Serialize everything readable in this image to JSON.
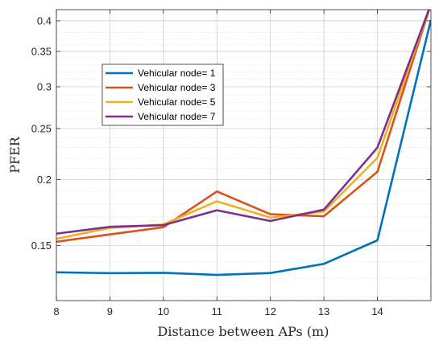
{
  "chart_data": {
    "type": "line",
    "xlabel": "Distance between APs (m)",
    "ylabel": "PFER",
    "x": [
      8,
      9,
      10,
      11,
      12,
      13,
      14,
      15
    ],
    "xlim": [
      8,
      15
    ],
    "ylim": [
      0.118,
      0.42
    ],
    "y_scale": "log",
    "x_ticks": [
      8,
      9,
      10,
      11,
      12,
      13,
      14
    ],
    "y_ticks": [
      0.15,
      0.2,
      0.25,
      0.3,
      0.35,
      0.4
    ],
    "y_tick_labels": [
      "0.15",
      "0.2",
      "0.25",
      "0.3",
      "0.35",
      "0.4"
    ],
    "grid": true,
    "minor_grid": true,
    "legend_position": "top-left",
    "series": [
      {
        "name": "Vehicular node= 1",
        "color": "#0072BD",
        "values": [
          0.1335,
          0.133,
          0.1332,
          0.132,
          0.1331,
          0.1385,
          0.1535,
          0.4015
        ]
      },
      {
        "name": "Vehicular node= 3",
        "color": "#D95319",
        "values": [
          0.1525,
          0.1575,
          0.1625,
          0.19,
          0.172,
          0.1705,
          0.207,
          0.43
        ]
      },
      {
        "name": "Vehicular node= 5",
        "color": "#EDB120",
        "values": [
          0.1545,
          0.162,
          0.1645,
          0.182,
          0.1695,
          0.174,
          0.22,
          0.43
        ]
      },
      {
        "name": "Vehicular node= 7",
        "color": "#7E2F8E",
        "values": [
          0.158,
          0.1628,
          0.164,
          0.175,
          0.167,
          0.1755,
          0.23,
          0.43
        ]
      }
    ]
  }
}
